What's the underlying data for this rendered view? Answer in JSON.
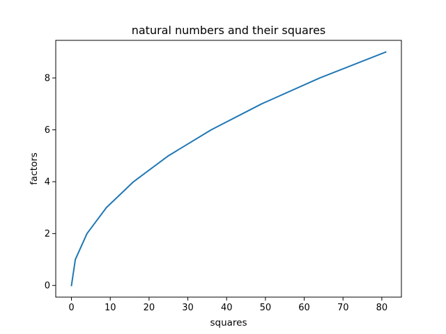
{
  "chart_data": {
    "type": "line",
    "title": "natural numbers and their squares",
    "xlabel": "squares",
    "ylabel": "factors",
    "xlim": [
      -4.05,
      85.05
    ],
    "ylim": [
      -0.45,
      9.45
    ],
    "xticks": [
      0,
      10,
      20,
      30,
      40,
      50,
      60,
      70,
      80
    ],
    "yticks": [
      0,
      2,
      4,
      6,
      8
    ],
    "grid": false,
    "legend": "none",
    "series": [
      {
        "color": "#1f77b4",
        "x": [
          0,
          1,
          4,
          9,
          16,
          25,
          36,
          49,
          64,
          81
        ],
        "y": [
          0,
          1,
          2,
          3,
          4,
          5,
          6,
          7,
          8,
          9
        ]
      }
    ]
  }
}
